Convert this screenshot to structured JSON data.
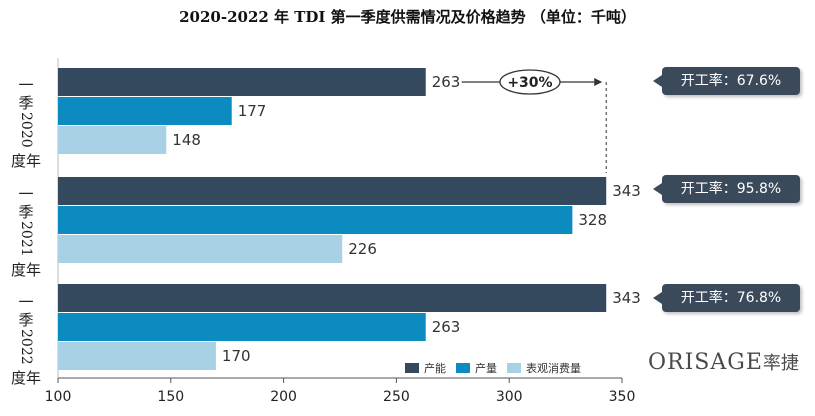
{
  "chart_data": {
    "type": "bar",
    "orientation": "horizontal",
    "title": "2020-2022 年 TDI 第一季度供需情况及价格趋势 （单位：千吨）",
    "categories": [
      "2020 年一季度",
      "2021 年一季度",
      "2022 年一季度"
    ],
    "category_labels": [
      {
        "top": "一",
        "mid": "季",
        "year": "2020",
        "bottom": "度年"
      },
      {
        "top": "一",
        "mid": "季",
        "year": "2021",
        "bottom": "度年"
      },
      {
        "top": "一",
        "mid": "季",
        "year": "2022",
        "bottom": "度年"
      }
    ],
    "series": [
      {
        "name": "产能",
        "color": "#34495e",
        "values": [
          263,
          343,
          343
        ]
      },
      {
        "name": "产量",
        "color": "#0b8bc0",
        "values": [
          177,
          328,
          263
        ]
      },
      {
        "name": "表观消费量",
        "color": "#a9d1e6",
        "values": [
          148,
          226,
          170
        ]
      }
    ],
    "xlim": [
      100,
      350
    ],
    "xticks": [
      100,
      150,
      200,
      250,
      300,
      350
    ],
    "annotation": {
      "text": "+30%",
      "from_value": 263,
      "to_value": 343
    },
    "utilization": [
      "开工率：67.6%",
      "开工率：95.8%",
      "开工率：76.8%"
    ]
  },
  "logo": {
    "latin": "ORISAGE",
    "chinese": "率捷"
  }
}
